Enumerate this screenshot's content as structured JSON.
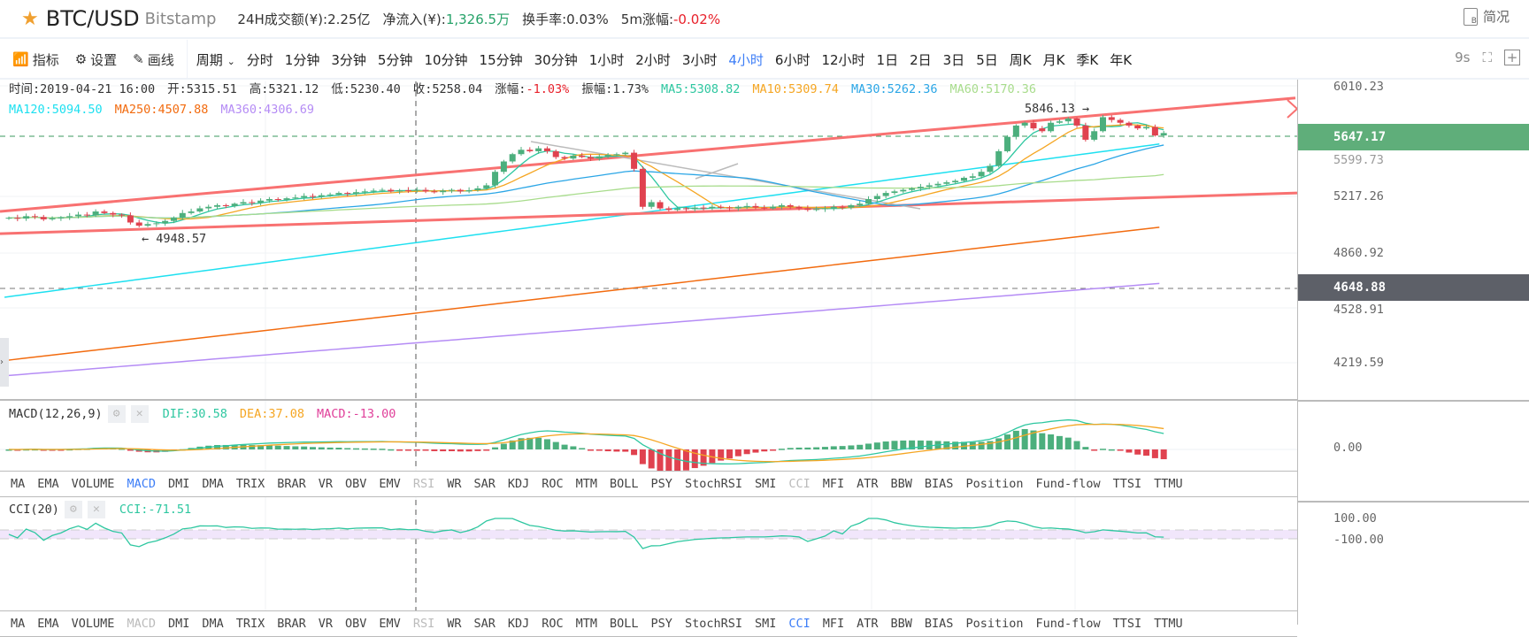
{
  "header": {
    "symbol": "BTC/USD",
    "exchange": "Bitstamp",
    "stats": [
      {
        "label": "24H成交额(¥):",
        "value": "2.25亿",
        "color": ""
      },
      {
        "label": "净流入(¥):",
        "value": "1,326.5万",
        "color": "green"
      },
      {
        "label": "换手率:",
        "value": "0.03%",
        "color": ""
      },
      {
        "label": "5m涨幅:",
        "value": "-0.02%",
        "color": "red"
      }
    ],
    "brief": "简况"
  },
  "toolbar": {
    "indicator": "指标",
    "settings": "设置",
    "draw": "画线",
    "period": "周期",
    "periods": [
      "分时",
      "1分钟",
      "3分钟",
      "5分钟",
      "10分钟",
      "15分钟",
      "30分钟",
      "1小时",
      "2小时",
      "3小时",
      "4小时",
      "6小时",
      "12小时",
      "1日",
      "2日",
      "3日",
      "5日",
      "周K",
      "月K",
      "季K",
      "年K"
    ],
    "active_period": "4小时",
    "refresh": "9s"
  },
  "info": {
    "time": "时间:2019-04-21 16:00",
    "open": "开:5315.51",
    "high": "高:5321.12",
    "low": "低:5230.40",
    "close": "收:5258.04",
    "change_label": "涨幅:",
    "change": "-1.03%",
    "amp": "振幅:1.73%",
    "ma": [
      {
        "t": "MA5:5308.82",
        "c": "#2ec7a0"
      },
      {
        "t": "MA10:5309.74",
        "c": "#f5a623"
      },
      {
        "t": "MA30:5262.36",
        "c": "#2ba6e6"
      },
      {
        "t": "MA60:5170.36",
        "c": "#a8dc8c"
      },
      {
        "t": "MA120:5094.50",
        "c": "#1ee0f0"
      },
      {
        "t": "MA250:4507.88",
        "c": "#f26b0f"
      },
      {
        "t": "MA360:4306.69",
        "c": "#b58cf5"
      }
    ]
  },
  "axis": {
    "labels": [
      "6010.23",
      "5217.26",
      "4860.92",
      "4528.91",
      "4219.59"
    ],
    "last_price": "5647.17",
    "hidden_price": "5599.73",
    "crosshair_price": "4648.88",
    "macd_zero": "0.00",
    "cci_top": "100.00",
    "cci_bottom": "-100.00"
  },
  "annotations": {
    "high": "5846.13 →",
    "low": "← 4948.57"
  },
  "macd": {
    "title": "MACD(12,26,9)",
    "dif": "DIF:30.58",
    "dea": "DEA:37.08",
    "macd": "MACD:-13.00"
  },
  "cci": {
    "title": "CCI(20)",
    "value": "CCI:-71.51"
  },
  "indicator_tabs": [
    "MA",
    "EMA",
    "VOLUME",
    "MACD",
    "DMI",
    "DMA",
    "TRIX",
    "BRAR",
    "VR",
    "OBV",
    "EMV",
    "RSI",
    "WR",
    "SAR",
    "KDJ",
    "ROC",
    "MTM",
    "BOLL",
    "PSY",
    "StochRSI",
    "SMI",
    "CCI",
    "MFI",
    "ATR",
    "BBW",
    "BIAS",
    "Position",
    "Fund-flow",
    "TTSI",
    "TTMU"
  ],
  "chart_data": {
    "type": "candlestick",
    "closes": [
      5080,
      5075,
      5090,
      5085,
      5070,
      5078,
      5082,
      5090,
      5100,
      5095,
      5120,
      5110,
      5100,
      5095,
      5050,
      5030,
      5040,
      5045,
      5060,
      5080,
      5110,
      5120,
      5140,
      5150,
      5160,
      5155,
      5170,
      5180,
      5175,
      5190,
      5200,
      5195,
      5205,
      5210,
      5220,
      5215,
      5225,
      5230,
      5240,
      5235,
      5245,
      5250,
      5255,
      5260,
      5250,
      5258,
      5255,
      5260,
      5250,
      5245,
      5255,
      5260,
      5250,
      5258,
      5270,
      5290,
      5380,
      5450,
      5500,
      5530,
      5520,
      5540,
      5520,
      5480,
      5470,
      5490,
      5480,
      5470,
      5485,
      5495,
      5500,
      5510,
      5400,
      5150,
      5180,
      5140,
      5130,
      5140,
      5135,
      5145,
      5140,
      5150,
      5145,
      5140,
      5150,
      5155,
      5145,
      5140,
      5150,
      5160,
      5150,
      5140,
      5130,
      5135,
      5140,
      5150,
      5145,
      5160,
      5170,
      5200,
      5220,
      5240,
      5250,
      5260,
      5270,
      5280,
      5290,
      5300,
      5310,
      5320,
      5340,
      5350,
      5380,
      5420,
      5520,
      5620,
      5700,
      5720,
      5680,
      5660,
      5720,
      5730,
      5750,
      5700,
      5600,
      5660,
      5760,
      5740,
      5720,
      5700,
      5680,
      5690,
      5630,
      5647
    ],
    "long_ma": [
      {
        "name": "MA120",
        "start": 4600,
        "end": 5570
      },
      {
        "name": "MA250",
        "start": 4250,
        "end": 5020
      },
      {
        "name": "MA360",
        "start": 4170,
        "end": 4680
      }
    ],
    "channel": {
      "upper": [
        5120,
        5900
      ],
      "lower": [
        4980,
        5240
      ]
    }
  }
}
